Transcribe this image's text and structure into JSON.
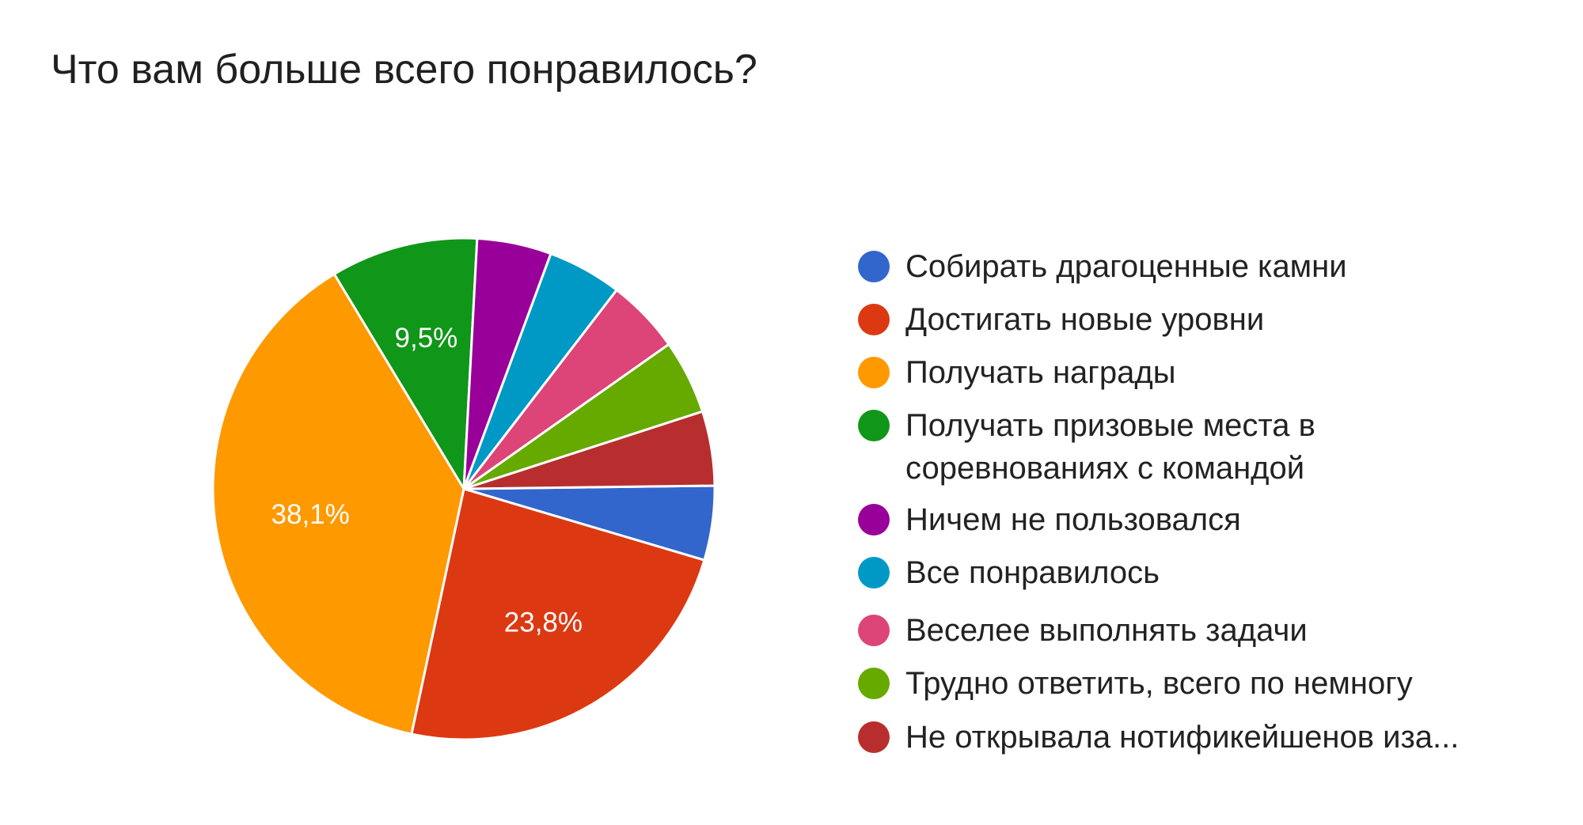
{
  "chart_data": {
    "type": "pie",
    "title": "Что вам больше всего понравилось?",
    "legend_position": "right",
    "slices": [
      {
        "label": "Собирать драгоценные камни",
        "value": 4.8,
        "color": "#3366cc",
        "data_label": ""
      },
      {
        "label": "Достигать новые уровни",
        "value": 23.8,
        "color": "#dc3912",
        "data_label": "23,8%"
      },
      {
        "label": "Получать награды",
        "value": 38.1,
        "color": "#ff9900",
        "data_label": "38,1%"
      },
      {
        "label": "Получать призовые места в соревнованиях с командой",
        "value": 9.5,
        "color": "#109618",
        "data_label": "9,5%"
      },
      {
        "label": "Ничем не пользовался",
        "value": 4.8,
        "color": "#990099",
        "data_label": ""
      },
      {
        "label": "Все понравилось",
        "value": 4.8,
        "color": "#0099c6",
        "data_label": ""
      },
      {
        "label": "Веселее выполнять задачи",
        "value": 4.8,
        "color": "#dd4477",
        "data_label": ""
      },
      {
        "label": "Трудно ответить, всего по немногу",
        "value": 4.8,
        "color": "#66aa00",
        "data_label": ""
      },
      {
        "label": "Не открывала нотификейшенов иза...",
        "value": 4.8,
        "color": "#b82e2e",
        "data_label": ""
      }
    ]
  }
}
